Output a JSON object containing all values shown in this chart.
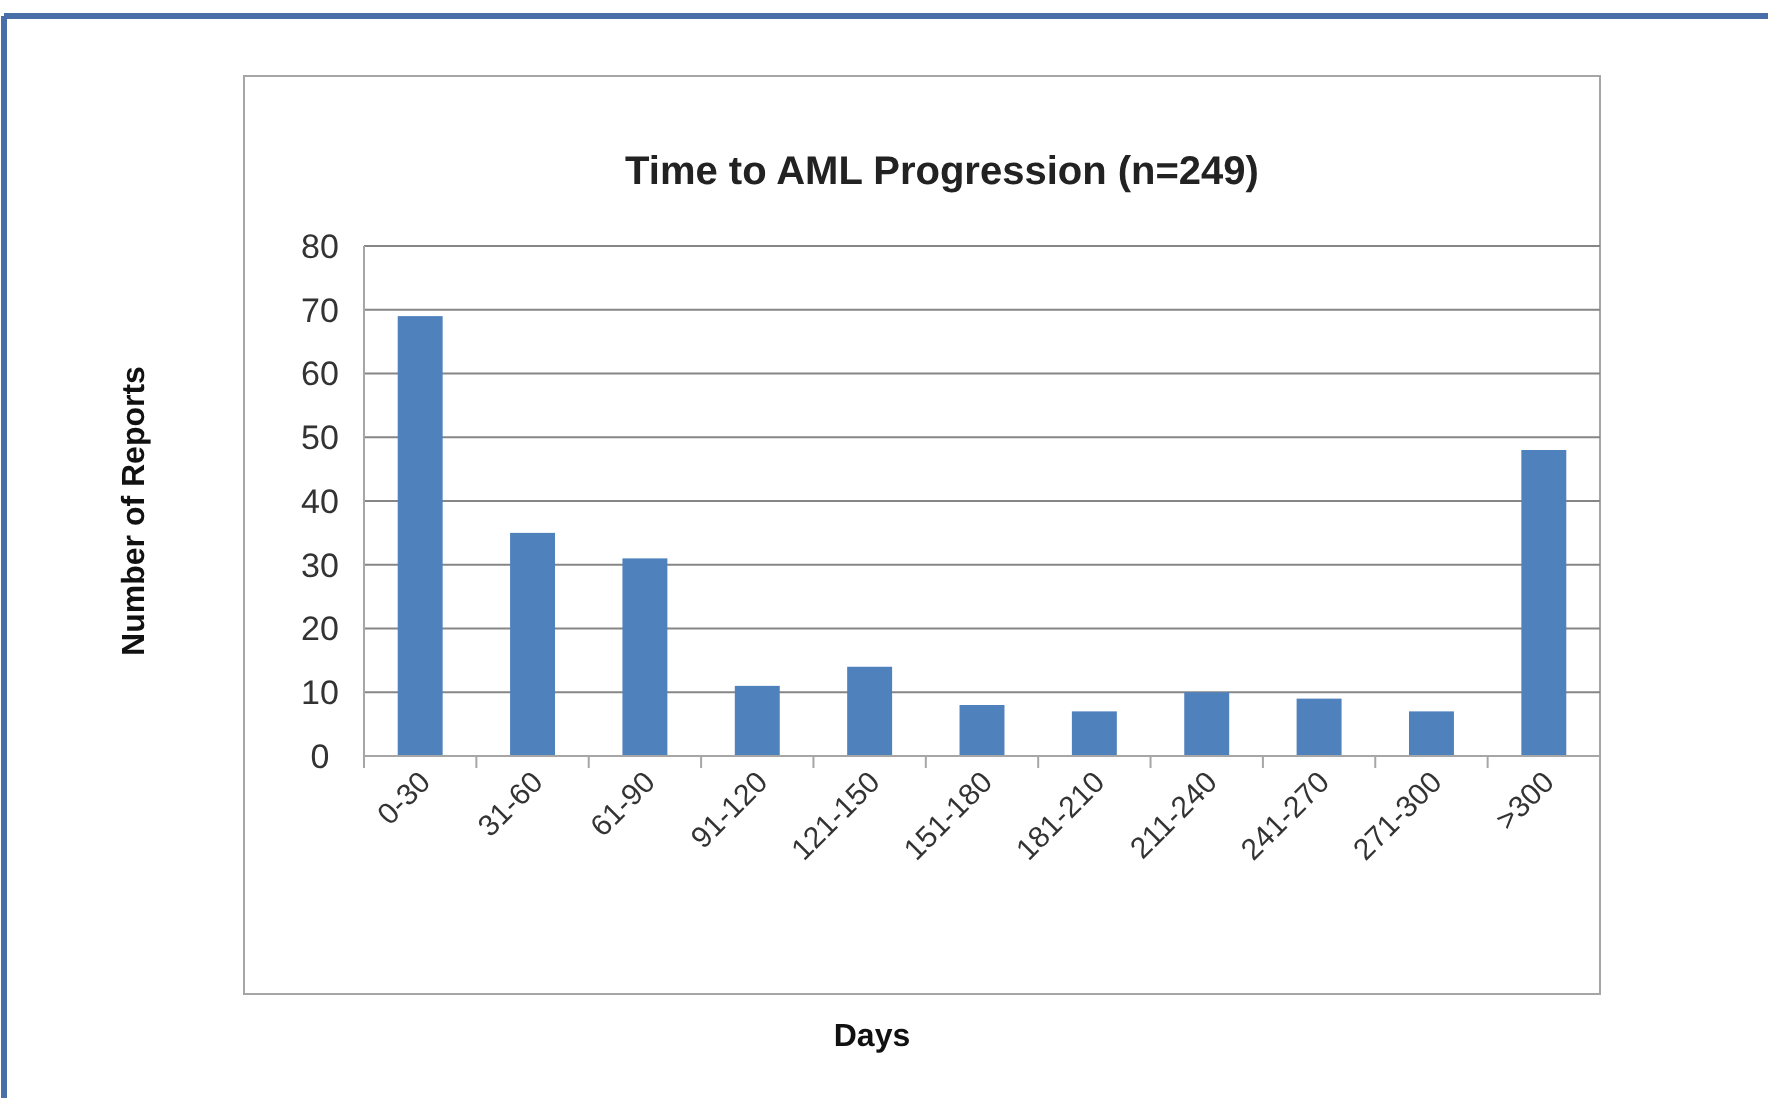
{
  "chart_data": {
    "type": "bar",
    "title": "Time to AML Progression (n=249)",
    "xlabel": "Days",
    "ylabel": "Number of Reports",
    "categories": [
      "0-30",
      "31-60",
      "61-90",
      "91-120",
      "121-150",
      "151-180",
      "181-210",
      "211-240",
      "241-270",
      "271-300",
      ">300"
    ],
    "values": [
      69,
      35,
      31,
      11,
      14,
      8,
      7,
      10,
      9,
      7,
      48
    ],
    "color": "#4f81bd",
    "ylim": [
      0,
      80
    ],
    "yticks": [
      0,
      10,
      20,
      30,
      40,
      50,
      60,
      70,
      80
    ],
    "grid": "y"
  }
}
